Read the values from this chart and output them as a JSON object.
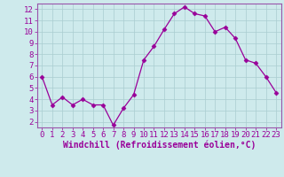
{
  "x": [
    0,
    1,
    2,
    3,
    4,
    5,
    6,
    7,
    8,
    9,
    10,
    11,
    12,
    13,
    14,
    15,
    16,
    17,
    18,
    19,
    20,
    21,
    22,
    23
  ],
  "y": [
    6.0,
    3.5,
    4.2,
    3.5,
    4.0,
    3.5,
    3.5,
    1.7,
    3.2,
    4.4,
    7.5,
    8.7,
    10.2,
    11.6,
    12.2,
    11.6,
    11.4,
    10.0,
    10.4,
    9.4,
    7.5,
    7.2,
    6.0,
    4.6
  ],
  "line_color": "#990099",
  "marker": "D",
  "marker_size": 2.5,
  "bg_color": "#ceeaec",
  "grid_color": "#aacdd0",
  "xlabel": "Windchill (Refroidissement éolien,°C)",
  "ylabel": "",
  "xlim": [
    -0.5,
    23.5
  ],
  "ylim": [
    1.5,
    12.5
  ],
  "yticks": [
    2,
    3,
    4,
    5,
    6,
    7,
    8,
    9,
    10,
    11,
    12
  ],
  "xticks": [
    0,
    1,
    2,
    3,
    4,
    5,
    6,
    7,
    8,
    9,
    10,
    11,
    12,
    13,
    14,
    15,
    16,
    17,
    18,
    19,
    20,
    21,
    22,
    23
  ],
  "xlabel_fontsize": 7.0,
  "tick_fontsize": 6.5,
  "tick_color": "#990099",
  "spine_color": "#9955aa"
}
